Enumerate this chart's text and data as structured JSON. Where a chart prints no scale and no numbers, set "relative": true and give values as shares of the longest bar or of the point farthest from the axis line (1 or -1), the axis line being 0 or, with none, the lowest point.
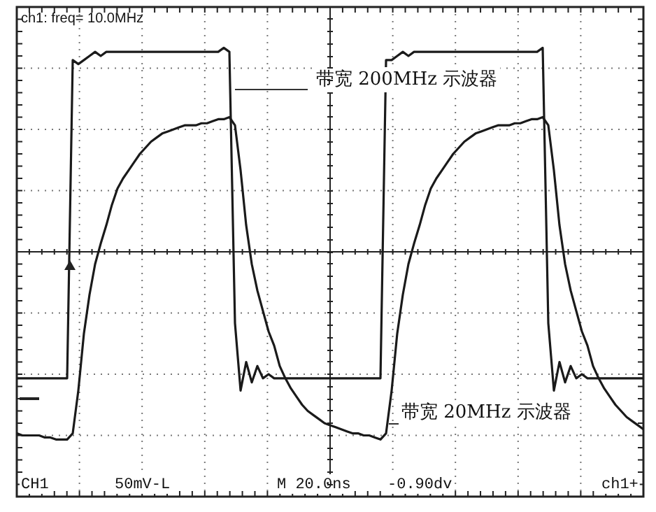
{
  "chart_data": {
    "type": "line",
    "relative": true,
    "grid": true,
    "legend": false,
    "marker": "none",
    "line_style": "solid",
    "categories": [
      null,
      null,
      null,
      null,
      null,
      null,
      null,
      null,
      null,
      null,
      null,
      null,
      null,
      null,
      null,
      null,
      null,
      null,
      null,
      null,
      null,
      null,
      null,
      null,
      null,
      null,
      null,
      null,
      null,
      null,
      null,
      null,
      null,
      null,
      null,
      null,
      null,
      null,
      null,
      null,
      null,
      null,
      null,
      null,
      null,
      null,
      null,
      null,
      null,
      null,
      null,
      null,
      null,
      null,
      null,
      null,
      null,
      null,
      null,
      null,
      null,
      null,
      null,
      null,
      null,
      null,
      null,
      null,
      null,
      null,
      null,
      null,
      null,
      null,
      null,
      null,
      null,
      null,
      null,
      null,
      null,
      null,
      null,
      null,
      null,
      null,
      null,
      null,
      null,
      null,
      null,
      null,
      null,
      null,
      null,
      null,
      null,
      null,
      null,
      null,
      null,
      null,
      null,
      null,
      null,
      null,
      null,
      null,
      null,
      null,
      null,
      null,
      null
    ],
    "series": [
      {
        "name": "带宽 200MHz 示波器",
        "color": "#1a1a1a",
        "values": [
          -0.62,
          -0.62,
          -0.62,
          -0.62,
          -0.62,
          -0.62,
          -0.62,
          -0.62,
          -0.62,
          -0.62,
          0.94,
          0.92,
          0.94,
          0.96,
          0.98,
          0.96,
          0.98,
          0.98,
          0.98,
          0.98,
          0.98,
          0.98,
          0.98,
          0.98,
          0.98,
          0.98,
          0.98,
          0.98,
          0.98,
          0.98,
          0.98,
          0.98,
          0.98,
          0.98,
          0.98,
          0.98,
          0.98,
          1.0,
          0.98,
          -0.35,
          -0.68,
          -0.54,
          -0.64,
          -0.56,
          -0.62,
          -0.6,
          -0.62,
          -0.62,
          -0.62,
          -0.62,
          -0.62,
          -0.62,
          -0.62,
          -0.62,
          -0.62,
          -0.62,
          -0.62,
          -0.62,
          -0.62,
          -0.62,
          -0.62,
          -0.62,
          -0.62,
          -0.62,
          -0.62,
          -0.62,
          0.94,
          0.94,
          0.96,
          0.98,
          0.96,
          0.98,
          0.98,
          0.98,
          0.98,
          0.98,
          0.98,
          0.98,
          0.98,
          0.98,
          0.98,
          0.98,
          0.98,
          0.98,
          0.98,
          0.98,
          0.98,
          0.98,
          0.98,
          0.98,
          0.98,
          0.98,
          0.98,
          0.98,
          1.0,
          -0.35,
          -0.68,
          -0.54,
          -0.64,
          -0.56,
          -0.62,
          -0.6,
          -0.62,
          -0.62,
          -0.62,
          -0.62,
          -0.62,
          -0.62,
          -0.62,
          -0.62,
          -0.62,
          -0.62,
          -0.62
        ]
      },
      {
        "name": "带宽 20MHz 示波器",
        "color": "#1a1a1a",
        "values": [
          -0.89,
          -0.9,
          -0.9,
          -0.9,
          -0.9,
          -0.91,
          -0.91,
          -0.92,
          -0.92,
          -0.92,
          -0.89,
          -0.68,
          -0.4,
          -0.21,
          -0.06,
          0.04,
          0.13,
          0.23,
          0.31,
          0.36,
          0.4,
          0.44,
          0.48,
          0.51,
          0.54,
          0.56,
          0.58,
          0.59,
          0.6,
          0.61,
          0.62,
          0.62,
          0.62,
          0.63,
          0.63,
          0.64,
          0.65,
          0.65,
          0.66,
          0.62,
          0.4,
          0.13,
          -0.06,
          -0.19,
          -0.29,
          -0.39,
          -0.46,
          -0.56,
          -0.62,
          -0.67,
          -0.71,
          -0.75,
          -0.78,
          -0.8,
          -0.82,
          -0.84,
          -0.85,
          -0.86,
          -0.87,
          -0.88,
          -0.89,
          -0.89,
          -0.9,
          -0.9,
          -0.91,
          -0.92,
          -0.89,
          -0.68,
          -0.4,
          -0.21,
          -0.06,
          0.04,
          0.13,
          0.23,
          0.31,
          0.36,
          0.4,
          0.44,
          0.48,
          0.51,
          0.54,
          0.56,
          0.58,
          0.59,
          0.6,
          0.61,
          0.62,
          0.62,
          0.62,
          0.63,
          0.63,
          0.64,
          0.65,
          0.65,
          0.66,
          0.62,
          0.4,
          0.13,
          -0.06,
          -0.19,
          -0.29,
          -0.39,
          -0.46,
          -0.56,
          -0.62,
          -0.67,
          -0.71,
          -0.75,
          -0.78,
          -0.81,
          -0.83,
          -0.85,
          -0.87
        ]
      }
    ],
    "annotations": [
      "ch1: freq= 10.0MHz",
      "CH1",
      "50mV-L",
      "M 20.0ns",
      "-0.90dv",
      "ch1+"
    ]
  }
}
